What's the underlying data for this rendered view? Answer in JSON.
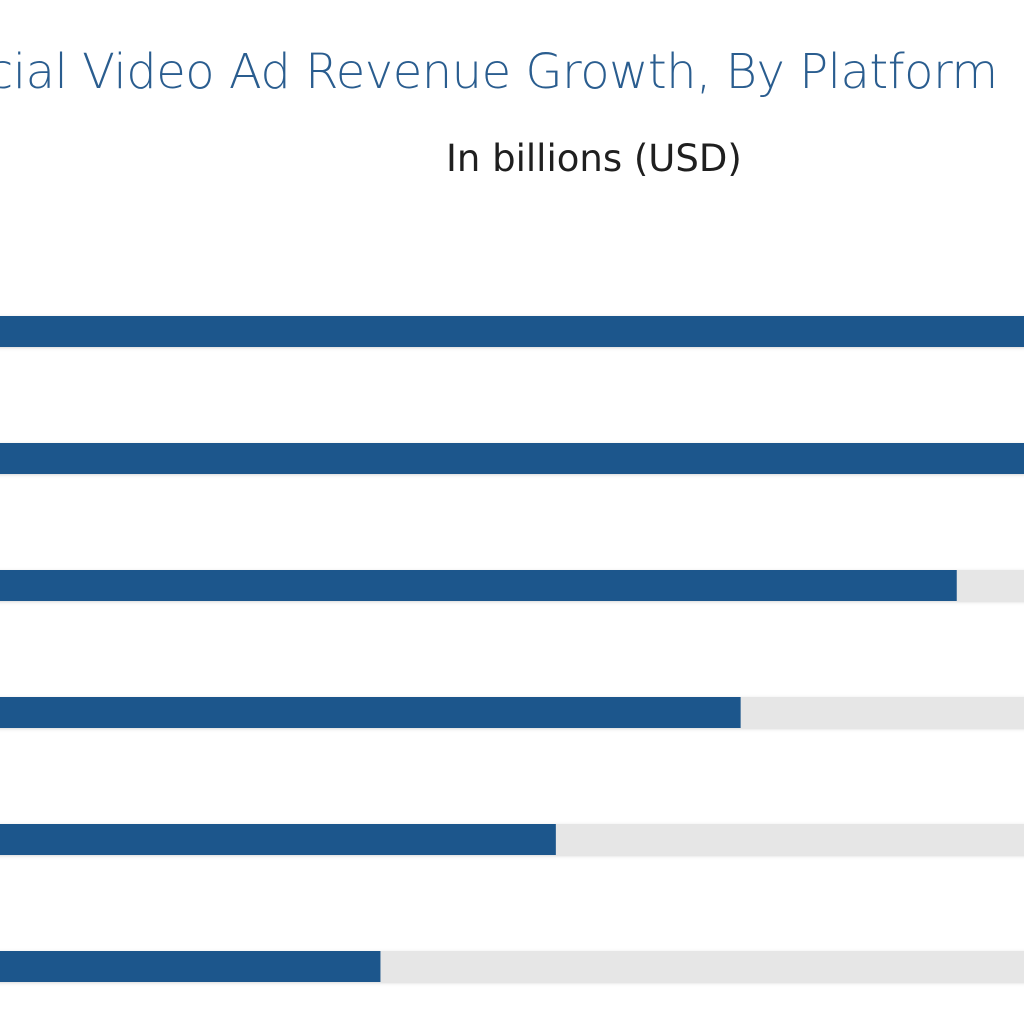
{
  "chart_data": {
    "type": "bar",
    "orientation": "horizontal",
    "title": "ocial Video Ad Revenue Growth, By Platform",
    "subtitle": "In billions (USD)",
    "categories": [
      "",
      "",
      "",
      "",
      "",
      ""
    ],
    "values": [
      1.0,
      1.0,
      0.926,
      0.719,
      0.542,
      0.374
    ],
    "value_unit": "fraction of bar track",
    "colors": {
      "bar": "#1c568c",
      "track": "#e6e6e6",
      "title": "#2a5d8f",
      "subtitle": "#1f1f1f"
    },
    "grid": false,
    "legend": "none"
  }
}
